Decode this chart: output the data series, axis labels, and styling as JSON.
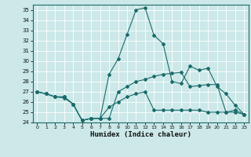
{
  "title": "",
  "xlabel": "Humidex (Indice chaleur)",
  "xlim": [
    -0.5,
    23.5
  ],
  "ylim": [
    24,
    35.5
  ],
  "yticks": [
    24,
    25,
    26,
    27,
    28,
    29,
    30,
    31,
    32,
    33,
    34,
    35
  ],
  "xticks": [
    0,
    1,
    2,
    3,
    4,
    5,
    6,
    7,
    8,
    9,
    10,
    11,
    12,
    13,
    14,
    15,
    16,
    17,
    18,
    19,
    20,
    21,
    22,
    23
  ],
  "background_color": "#cce8e8",
  "line_color": "#1a6b6b",
  "lines": [
    {
      "x": [
        0,
        1,
        2,
        3,
        4,
        5,
        6,
        7,
        8,
        9,
        10,
        11,
        12,
        13,
        14,
        15,
        16,
        17,
        18,
        19,
        20,
        21,
        22,
        23
      ],
      "y": [
        27,
        26.8,
        26.5,
        26.5,
        25.8,
        24.2,
        24.4,
        24.4,
        28.7,
        30.2,
        32.6,
        35.0,
        35.2,
        32.5,
        31.7,
        28.0,
        27.8,
        29.5,
        29.1,
        29.3,
        27.5,
        26.8,
        25.7,
        24.8
      ]
    },
    {
      "x": [
        0,
        1,
        2,
        3,
        4,
        5,
        6,
        7,
        8,
        9,
        10,
        11,
        12,
        13,
        14,
        15,
        16,
        17,
        18,
        19,
        20,
        21,
        22,
        23
      ],
      "y": [
        27,
        26.8,
        26.5,
        26.5,
        25.8,
        24.2,
        24.4,
        24.4,
        24.4,
        27.0,
        27.5,
        28.0,
        28.2,
        28.5,
        28.7,
        28.8,
        28.9,
        27.5,
        27.6,
        27.7,
        27.7,
        25.0,
        25.0,
        24.8
      ]
    },
    {
      "x": [
        0,
        1,
        2,
        3,
        4,
        5,
        6,
        7,
        8,
        9,
        10,
        11,
        12,
        13,
        14,
        15,
        16,
        17,
        18,
        19,
        20,
        21,
        22,
        23
      ],
      "y": [
        27,
        26.8,
        26.5,
        26.4,
        25.8,
        24.2,
        24.4,
        24.4,
        25.5,
        26.0,
        26.5,
        26.8,
        27.0,
        25.2,
        25.2,
        25.2,
        25.2,
        25.2,
        25.2,
        25.0,
        25.0,
        25.0,
        25.2,
        24.8
      ]
    }
  ]
}
